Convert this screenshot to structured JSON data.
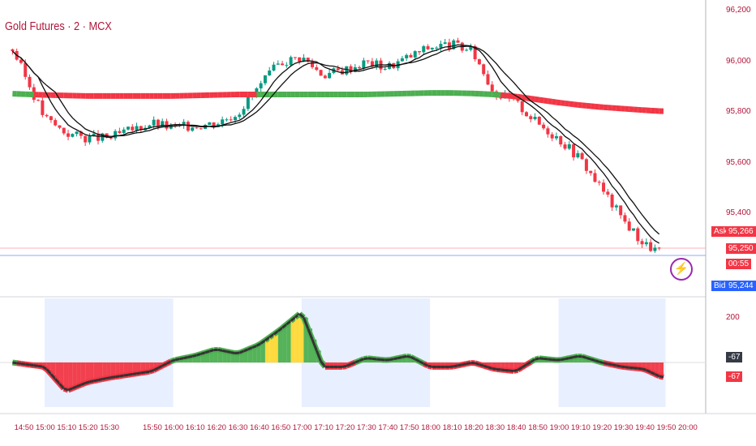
{
  "header": {
    "title": "Gold Futures · 2 · MCX"
  },
  "colors": {
    "up": "#089981",
    "down": "#f23645",
    "ma_up": "#4caf50",
    "ma_down": "#f23645",
    "ask": "#f23645",
    "bid": "#2962ff",
    "band": "#e8efff"
  },
  "price_axis": {
    "ticks": [
      "96,200",
      "96,000",
      "95,800",
      "95,600",
      "95,400"
    ]
  },
  "quote": {
    "ask_label": "Ask",
    "ask": "95,266",
    "last": "95,250",
    "countdown": "00:55",
    "bid_label": "Bid",
    "bid": "95,244"
  },
  "indicator_axis": {
    "ticks": [
      "200"
    ],
    "value_dark": "-67",
    "value_red": "-67"
  },
  "time_axis": {
    "ticks": [
      "14:50",
      "15:00",
      "15:10",
      "15:20",
      "15:30",
      "15:50",
      "16:00",
      "16:10",
      "16:20",
      "16:30",
      "16:40",
      "16:50",
      "17:00",
      "17:10",
      "17:20",
      "17:30",
      "17:40",
      "17:50",
      "18:00",
      "18:10",
      "18:20",
      "18:30",
      "18:40",
      "18:50",
      "19:00",
      "19:10",
      "19:20",
      "19:30",
      "19:40",
      "19:50",
      "20:00"
    ]
  },
  "chart_data": {
    "type": "candlestick",
    "title": "Gold Futures · 2 · MCX",
    "ylim": [
      95100,
      96250
    ],
    "x": [
      "14:45",
      "15:00",
      "15:10",
      "15:20",
      "15:30",
      "15:50",
      "16:00",
      "16:10",
      "16:20",
      "16:30",
      "16:40",
      "16:50",
      "17:00",
      "17:10",
      "17:20",
      "17:30",
      "17:40",
      "17:50",
      "18:00",
      "18:10",
      "18:20",
      "18:30",
      "18:40",
      "18:50",
      "19:00",
      "19:10",
      "19:20",
      "19:30",
      "19:40",
      "19:48"
    ],
    "close": [
      96050,
      95780,
      95720,
      95700,
      95700,
      95760,
      95740,
      95750,
      95760,
      95800,
      95900,
      96000,
      96020,
      95950,
      95970,
      96000,
      95980,
      96020,
      96060,
      96070,
      96040,
      95880,
      95840,
      95760,
      95700,
      95620,
      95500,
      95380,
      95280,
      95250
    ],
    "long_ma": [
      95875,
      95870,
      95868,
      95866,
      95866,
      95866,
      95866,
      95868,
      95870,
      95872,
      95872,
      95872,
      95872,
      95872,
      95872,
      95872,
      95874,
      95876,
      95878,
      95878,
      95876,
      95872,
      95864,
      95852,
      95840,
      95830,
      95822,
      95816,
      95810,
      95806
    ],
    "indicator": [
      0,
      -20,
      -130,
      -90,
      -70,
      -40,
      10,
      30,
      60,
      40,
      80,
      150,
      230,
      -20,
      -20,
      20,
      10,
      30,
      -20,
      -20,
      0,
      -30,
      -40,
      20,
      10,
      30,
      0,
      -20,
      -30,
      -67
    ]
  }
}
